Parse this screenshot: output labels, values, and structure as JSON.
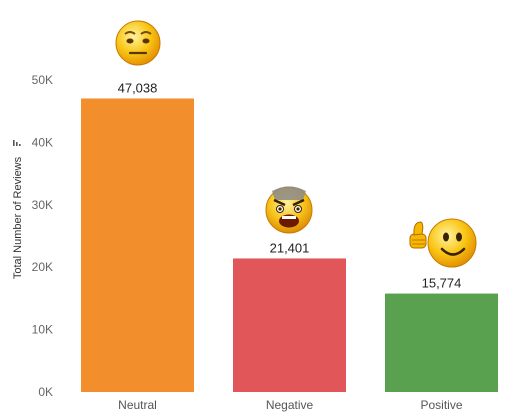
{
  "chart_data": {
    "type": "bar",
    "ylabel": "Total Number of Reviews",
    "ylim": [
      0,
      50000
    ],
    "yticks": [
      0,
      10000,
      20000,
      30000,
      40000,
      50000
    ],
    "ytick_labels": [
      "0K",
      "10K",
      "20K",
      "30K",
      "40K",
      "50K"
    ],
    "categories": [
      "Neutral",
      "Negative",
      "Positive"
    ],
    "values": [
      47038,
      21401,
      15774
    ],
    "value_labels": [
      "47,038",
      "21,401",
      "15,774"
    ],
    "colors": [
      "#F28E2B",
      "#E15759",
      "#59A14F"
    ],
    "icons": [
      "neutral-face-icon",
      "angry-face-icon",
      "thumbs-up-face-icon"
    ],
    "grid": false,
    "legend": "none"
  }
}
